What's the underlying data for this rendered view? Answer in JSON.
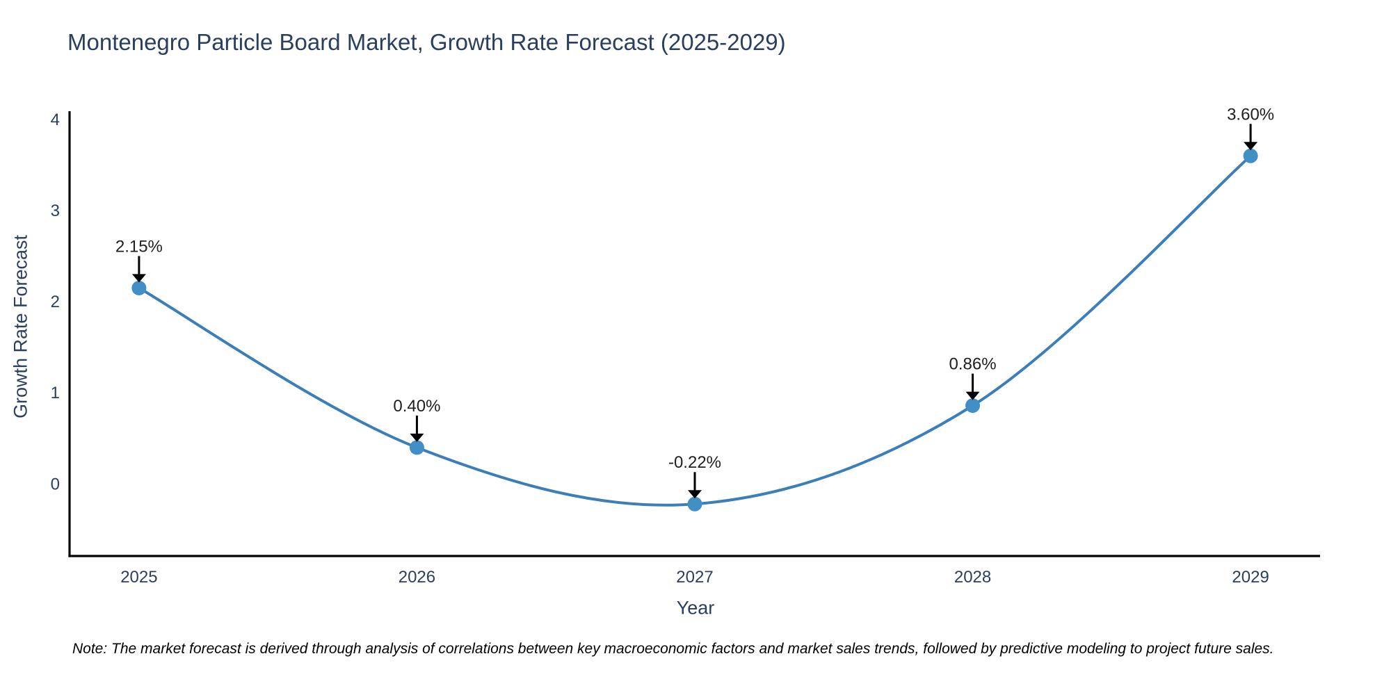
{
  "page": {
    "title": "Montenegro Particle Board Market, Growth Rate Forecast (2025-2029)",
    "note": "Note: The market forecast is derived through analysis of correlations between key macroeconomic factors and market sales trends, followed by predictive modeling to project future sales."
  },
  "chart_data": {
    "type": "line",
    "line_shape": "spline",
    "title": "Montenegro Particle Board Market, Growth Rate Forecast (2025-2029)",
    "xlabel": "Year",
    "ylabel": "Growth Rate Forecast",
    "x": [
      2025,
      2026,
      2027,
      2028,
      2029
    ],
    "values": [
      2.15,
      0.4,
      -0.22,
      0.86,
      3.6
    ],
    "point_labels": [
      "2.15%",
      "0.40%",
      "-0.22%",
      "0.86%",
      "3.60%"
    ],
    "xticks": [
      "2025",
      "2026",
      "2027",
      "2028",
      "2029"
    ],
    "yticks": [
      0,
      1,
      2,
      3,
      4
    ],
    "xlim": [
      2024.75,
      2029.25
    ],
    "ylim": [
      -0.79,
      4.09
    ],
    "grid": false,
    "legend": "none",
    "colors": {
      "line": "#3c7eb8",
      "marker": "#4090c5",
      "axis": "#000000",
      "tick_text": "#2a3f5f",
      "annotation_text": "#1f1f1f",
      "annotation_arrow": "#000000",
      "title_text": "#2a3f5f"
    }
  }
}
